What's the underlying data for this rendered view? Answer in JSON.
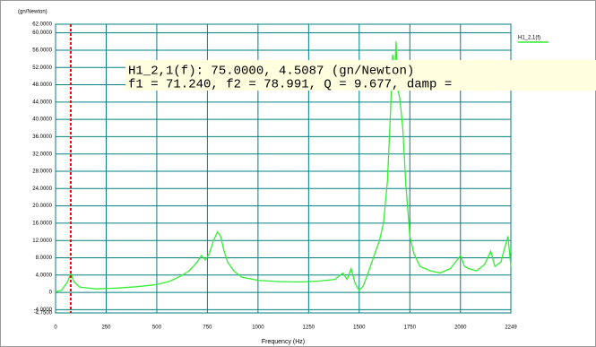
{
  "chart_data": {
    "type": "line",
    "y_unit": "(gn/Newton)",
    "x_label": "Frequency (Hz)",
    "annotation": [
      "H1_2,1(f): 75.0000, 4.5087 (gn/Newton)",
      "f1 = 71.240, f2 = 78.991, Q = 9.677, damp ="
    ],
    "cursor": {
      "x": 75,
      "color": "#ff0000"
    },
    "xlim": [
      0,
      2249
    ],
    "xticks": [
      0,
      250,
      500,
      750,
      1000,
      1250,
      1500,
      1750,
      2000,
      2249
    ],
    "ylim": [
      -4.75,
      62
    ],
    "yticks": [
      {
        "value": 62,
        "label": "62.0000"
      },
      {
        "value": 60,
        "label": "60.0000"
      },
      {
        "value": 56,
        "label": "56.0000"
      },
      {
        "value": 52,
        "label": "52.0000"
      },
      {
        "value": 48,
        "label": "48.0000"
      },
      {
        "value": 44,
        "label": "44.0000"
      },
      {
        "value": 40,
        "label": "40.0000"
      },
      {
        "value": 36,
        "label": "36.0000"
      },
      {
        "value": 32,
        "label": "32.0000"
      },
      {
        "value": 28,
        "label": "28.0000"
      },
      {
        "value": 24,
        "label": "24.0000"
      },
      {
        "value": 20,
        "label": "20.0000"
      },
      {
        "value": 16,
        "label": "16.0000"
      },
      {
        "value": 12,
        "label": "12.0000"
      },
      {
        "value": 8,
        "label": "8.0000"
      },
      {
        "value": 4,
        "label": "4.0000"
      },
      0,
      {
        "value": -4,
        "label": "-4.0000"
      },
      {
        "value": -4.75,
        "label": "-4.7500"
      }
    ],
    "grid": true,
    "series": [
      {
        "name": "H1_2,1(f)",
        "color": "#33ee33",
        "x": [
          0,
          30,
          60,
          75,
          90,
          120,
          200,
          300,
          400,
          500,
          560,
          620,
          660,
          700,
          720,
          740,
          760,
          780,
          800,
          815,
          830,
          850,
          880,
          920,
          1000,
          1100,
          1200,
          1300,
          1380,
          1420,
          1440,
          1460,
          1480,
          1500,
          1520,
          1540,
          1570,
          1600,
          1620,
          1640,
          1655,
          1665,
          1675,
          1682,
          1690,
          1700,
          1715,
          1730,
          1750,
          1770,
          1800,
          1850,
          1900,
          1950,
          2000,
          2020,
          2040,
          2080,
          2120,
          2150,
          2170,
          2200,
          2220,
          2235,
          2249
        ],
        "values": [
          0.2,
          0.5,
          2.5,
          4.5,
          2.5,
          1.2,
          0.8,
          1.0,
          1.3,
          1.8,
          2.5,
          3.8,
          5.0,
          7.0,
          8.5,
          7.5,
          9.0,
          12.0,
          14.0,
          13.0,
          10.0,
          7.0,
          5.0,
          3.5,
          2.8,
          2.5,
          2.4,
          2.6,
          3.0,
          4.5,
          3.0,
          5.5,
          2.0,
          0.5,
          1.5,
          4.0,
          8.0,
          12.0,
          16.0,
          26.0,
          42.0,
          55.0,
          50.0,
          58.0,
          47.0,
          45.0,
          38.0,
          25.0,
          13.0,
          9.0,
          6.0,
          5.0,
          4.5,
          5.5,
          8.5,
          6.0,
          5.5,
          5.0,
          6.5,
          9.5,
          6.0,
          7.0,
          10.5,
          13.0,
          6.0
        ]
      }
    ]
  }
}
